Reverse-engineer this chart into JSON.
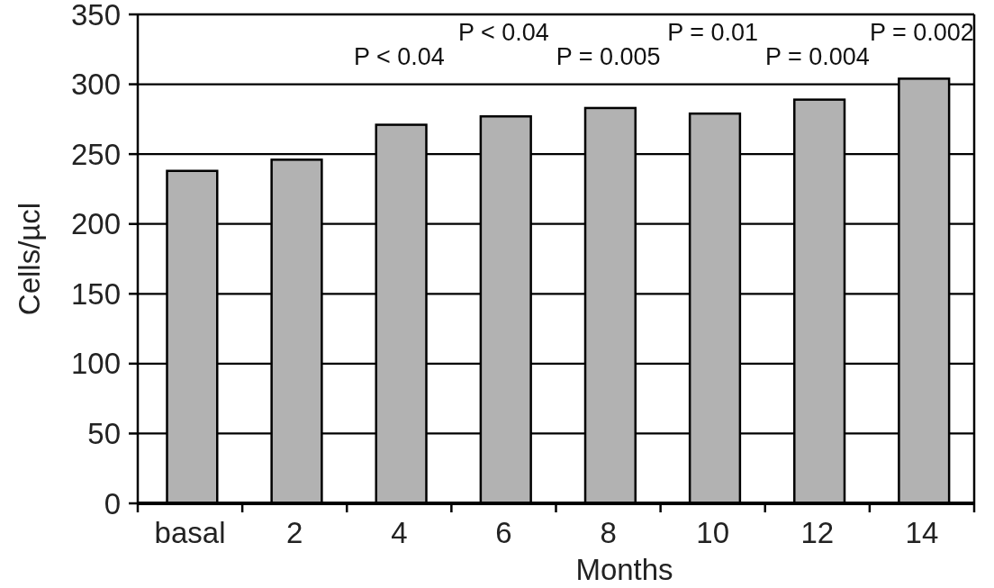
{
  "chart_data": {
    "type": "bar",
    "xlabel": "Months",
    "ylabel": "Cells/µcl",
    "categories": [
      "basal",
      "2",
      "4",
      "6",
      "8",
      "10",
      "12",
      "14"
    ],
    "values": [
      238,
      246,
      271,
      277,
      283,
      279,
      289,
      304
    ],
    "color": "#b2b2b2",
    "ylim": [
      0,
      350
    ],
    "yticks": [
      0,
      50,
      100,
      150,
      200,
      250,
      300,
      350
    ],
    "grid": true,
    "annotations": [
      "P < 0.04",
      "P < 0.04",
      "P = 0.005",
      "P = 0.01",
      "P = 0.004",
      "P = 0.002"
    ]
  }
}
